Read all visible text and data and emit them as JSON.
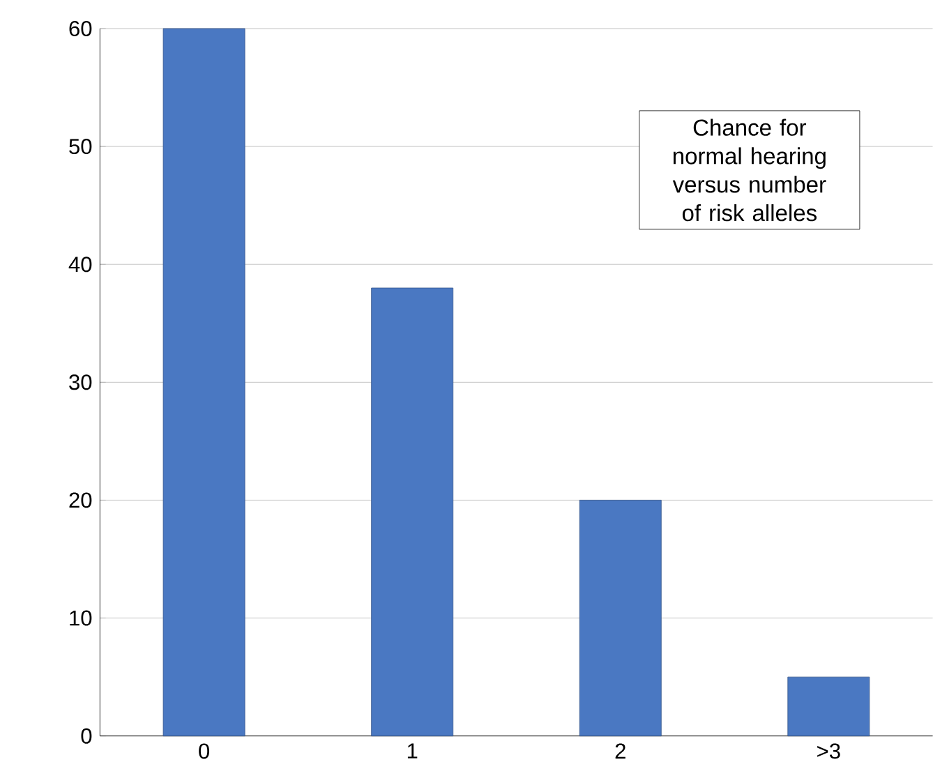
{
  "chart_data": {
    "type": "bar",
    "categories": [
      "0",
      "1",
      "2",
      ">3"
    ],
    "values": [
      60,
      38,
      20,
      5
    ],
    "color": "#4a78c2",
    "ylim": [
      0,
      60
    ],
    "yticks": [
      0,
      10,
      20,
      30,
      40,
      50,
      60
    ],
    "grid": "y",
    "annotations": [
      "Chance for normal hearing versus number of risk alleles"
    ]
  }
}
